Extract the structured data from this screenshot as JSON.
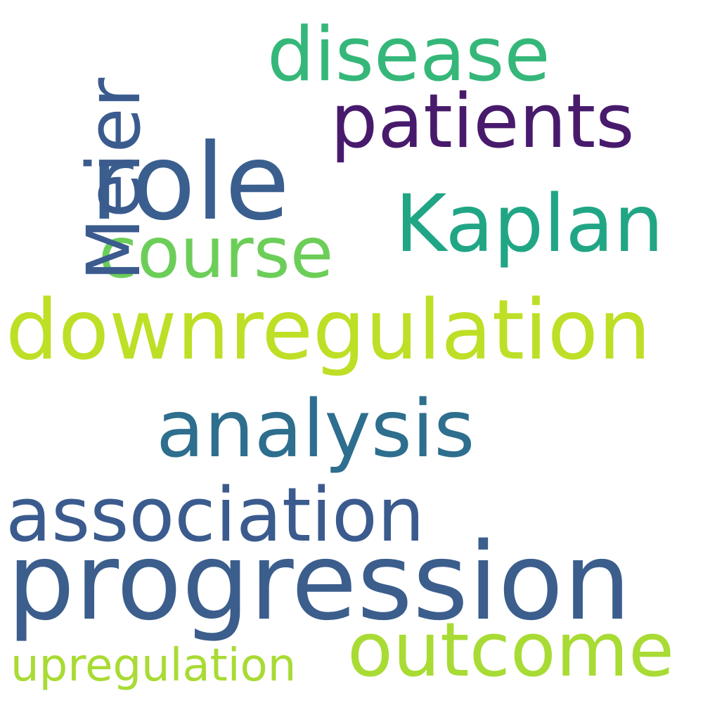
{
  "words": [
    {
      "id": "progression",
      "text": "progression",
      "color": "#3b5e8c"
    },
    {
      "id": "downregulation",
      "text": "downregulation",
      "color": "#bddf26"
    },
    {
      "id": "role",
      "text": "role",
      "color": "#3a5f8e"
    },
    {
      "id": "analysis",
      "text": "analysis",
      "color": "#2e6e8e"
    },
    {
      "id": "association",
      "text": "association",
      "color": "#3b5b8e"
    },
    {
      "id": "outcome",
      "text": "outcome",
      "color": "#a8db34"
    },
    {
      "id": "kaplan",
      "text": "Kaplan",
      "color": "#21a685"
    },
    {
      "id": "patients",
      "text": "patients",
      "color": "#481a6c"
    },
    {
      "id": "disease",
      "text": "disease",
      "color": "#35b779"
    },
    {
      "id": "course",
      "text": "course",
      "color": "#6cce59"
    },
    {
      "id": "upregulation",
      "text": "upregulation",
      "color": "#a8db34"
    },
    {
      "id": "meier",
      "text": "Meier",
      "color": "#3b5b8e"
    }
  ]
}
